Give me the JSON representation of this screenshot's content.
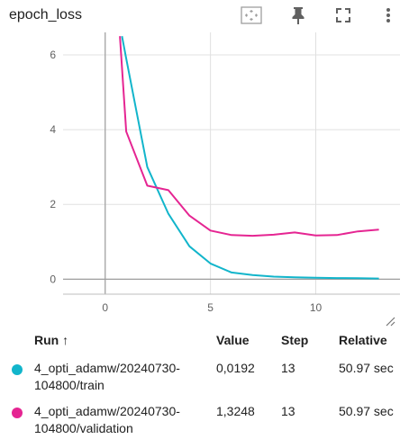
{
  "card": {
    "title": "epoch_loss",
    "toolbar": [
      "fit-domain-icon",
      "pin-icon",
      "fullscreen-icon",
      "more-vert-icon"
    ]
  },
  "chart_data": {
    "type": "line",
    "title": "epoch_loss",
    "xlabel": "",
    "ylabel": "",
    "xlim": [
      -2,
      14
    ],
    "ylim": [
      -0.4,
      6.6
    ],
    "x_ticks": [
      0,
      5,
      10
    ],
    "y_ticks": [
      0,
      2,
      4,
      6
    ],
    "grid": true,
    "legend": "none",
    "series": [
      {
        "name": "4_opti_adamw/20240730-104800/train",
        "color": "#12b5cb",
        "x": [
          0.8,
          1,
          2,
          3,
          4,
          5,
          6,
          7,
          8,
          9,
          10,
          11,
          12,
          13
        ],
        "y": [
          6.5,
          5.9,
          3.0,
          1.75,
          0.88,
          0.42,
          0.18,
          0.11,
          0.07,
          0.05,
          0.04,
          0.03,
          0.025,
          0.0192
        ]
      },
      {
        "name": "4_opti_adamw/20240730-104800/validation",
        "color": "#e52592",
        "x": [
          0.7,
          1,
          2,
          3,
          4,
          5,
          6,
          7,
          8,
          9,
          10,
          11,
          12,
          13
        ],
        "y": [
          6.5,
          3.95,
          2.5,
          2.38,
          1.7,
          1.3,
          1.18,
          1.16,
          1.19,
          1.25,
          1.17,
          1.18,
          1.28,
          1.3248
        ]
      }
    ]
  },
  "table": {
    "headers": {
      "run": "Run",
      "sort_arrow": "↑",
      "value": "Value",
      "step": "Step",
      "relative": "Relative"
    },
    "rows": [
      {
        "run_line1": "4_opti_adamw/20240730-",
        "run_line2": "104800/train",
        "value": "0,0192",
        "step": "13",
        "relative": "50.97 sec",
        "color": "#12b5cb"
      },
      {
        "run_line1": "4_opti_adamw/20240730-",
        "run_line2": "104800/validation",
        "value": "1,3248",
        "step": "13",
        "relative": "50.97 sec",
        "color": "#e52592"
      }
    ]
  }
}
